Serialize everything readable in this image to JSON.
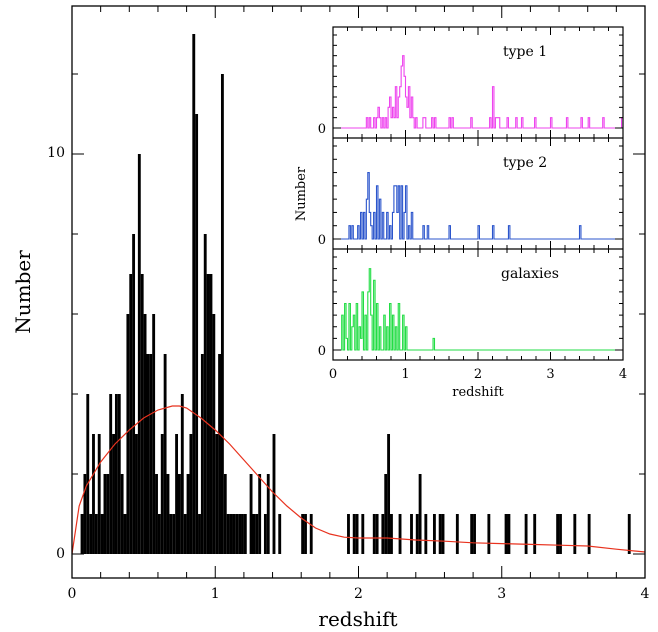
{
  "chart_data": {
    "type": "bar",
    "xlabel": "redshift",
    "ylabel": "Number",
    "xlim": [
      0,
      4
    ],
    "ylim": [
      -0.6,
      13.7
    ],
    "x_ticks": [
      "0",
      "1",
      "2",
      "3",
      "4"
    ],
    "y_ticks": [
      "0",
      "10"
    ],
    "bin_width": 0.02,
    "bar_color": "#000000",
    "curve_color": "#e8321e",
    "histogram": {
      "bin_centers": [
        0.07,
        0.09,
        0.11,
        0.13,
        0.15,
        0.17,
        0.19,
        0.21,
        0.23,
        0.25,
        0.27,
        0.29,
        0.31,
        0.33,
        0.35,
        0.37,
        0.39,
        0.41,
        0.43,
        0.45,
        0.47,
        0.49,
        0.51,
        0.53,
        0.55,
        0.57,
        0.59,
        0.61,
        0.63,
        0.65,
        0.67,
        0.69,
        0.71,
        0.73,
        0.75,
        0.77,
        0.79,
        0.81,
        0.83,
        0.85,
        0.87,
        0.89,
        0.91,
        0.93,
        0.95,
        0.97,
        0.99,
        1.01,
        1.03,
        1.05,
        1.07,
        1.09,
        1.11,
        1.13,
        1.15,
        1.17,
        1.19,
        1.21,
        1.25,
        1.27,
        1.29,
        1.31,
        1.35,
        1.37,
        1.41,
        1.45,
        1.61,
        1.63,
        1.67,
        1.93,
        1.97,
        1.99,
        2.03,
        2.11,
        2.13,
        2.17,
        2.19,
        2.21,
        2.23,
        2.29,
        2.37,
        2.41,
        2.43,
        2.47,
        2.53,
        2.57,
        2.59,
        2.69,
        2.79,
        2.81,
        2.91,
        3.03,
        3.05,
        3.17,
        3.23,
        3.39,
        3.41,
        3.51,
        3.61,
        3.89
      ],
      "counts": [
        1,
        2,
        4,
        1,
        3,
        1,
        3,
        1,
        2,
        2,
        4,
        3,
        4,
        4,
        2,
        1,
        6,
        7,
        8,
        3,
        10,
        7,
        6,
        5,
        5,
        6,
        2,
        1,
        3,
        5,
        2,
        1,
        1,
        3,
        2,
        4,
        1,
        2,
        3,
        13,
        11,
        1,
        5,
        8,
        7,
        7,
        6,
        3,
        5,
        12,
        2,
        1,
        1,
        1,
        1,
        1,
        1,
        1,
        2,
        1,
        1,
        2,
        1,
        2,
        3,
        1,
        1,
        1,
        1,
        1,
        1,
        1,
        1,
        1,
        1,
        1,
        2,
        3,
        1,
        1,
        1,
        1,
        2,
        1,
        1,
        1,
        1,
        1,
        1,
        1,
        1,
        1,
        1,
        1,
        1,
        1,
        1,
        1,
        1,
        1
      ]
    },
    "fit_curve": {
      "x": [
        0.0,
        0.05,
        0.1,
        0.15,
        0.2,
        0.3,
        0.4,
        0.5,
        0.6,
        0.7,
        0.75,
        0.8,
        0.9,
        1.0,
        1.1,
        1.2,
        1.3,
        1.4,
        1.5,
        1.6,
        1.7,
        1.8,
        1.9,
        2.0,
        2.2,
        2.4,
        2.6,
        2.8,
        3.0,
        3.2,
        3.4,
        3.6,
        3.8,
        4.0
      ],
      "y": [
        0.0,
        1.2,
        1.7,
        2.0,
        2.3,
        2.75,
        3.1,
        3.4,
        3.6,
        3.7,
        3.7,
        3.65,
        3.4,
        3.1,
        2.75,
        2.35,
        1.95,
        1.55,
        1.2,
        0.9,
        0.65,
        0.5,
        0.42,
        0.4,
        0.4,
        0.35,
        0.32,
        0.28,
        0.26,
        0.24,
        0.22,
        0.2,
        0.12,
        0.05
      ]
    },
    "inset": {
      "xlabel": "redshift",
      "ylabel": "Number",
      "xlim": [
        0,
        4
      ],
      "x_ticks": [
        "0",
        "1",
        "2",
        "3",
        "4"
      ],
      "panels": [
        {
          "name": "type 1",
          "color": "#ee44ee",
          "zero_label": "0",
          "bin_centers": [
            0.47,
            0.51,
            0.57,
            0.61,
            0.63,
            0.65,
            0.69,
            0.73,
            0.77,
            0.79,
            0.81,
            0.83,
            0.85,
            0.87,
            0.89,
            0.91,
            0.93,
            0.95,
            0.97,
            0.99,
            1.01,
            1.03,
            1.05,
            1.07,
            1.09,
            1.11,
            1.15,
            1.25,
            1.27,
            1.37,
            1.41,
            1.61,
            1.65,
            1.91,
            2.17,
            2.21,
            2.25,
            2.27,
            2.29,
            2.41,
            2.53,
            2.61,
            2.79,
            3.01,
            3.23,
            3.43,
            3.53,
            3.73,
            3.99
          ],
          "counts": [
            1,
            1,
            1,
            1,
            2,
            1,
            1,
            1,
            2,
            3,
            1,
            2,
            1,
            4,
            1,
            3,
            4,
            6,
            7,
            5,
            3,
            2,
            4,
            1,
            3,
            1,
            1,
            1,
            1,
            1,
            1,
            1,
            1,
            1,
            1,
            4,
            1,
            1,
            1,
            1,
            1,
            1,
            1,
            1,
            1,
            1,
            1,
            1,
            1
          ],
          "ymax": 9
        },
        {
          "name": "type 2",
          "color": "#2b55cc",
          "zero_label": "0",
          "bin_centers": [
            0.23,
            0.27,
            0.35,
            0.39,
            0.43,
            0.47,
            0.49,
            0.51,
            0.53,
            0.57,
            0.61,
            0.65,
            0.69,
            0.75,
            0.79,
            0.83,
            0.85,
            0.87,
            0.89,
            0.91,
            0.95,
            0.99,
            1.01,
            1.05,
            1.09,
            1.25,
            1.31,
            1.61,
            2.01,
            2.21,
            2.43,
            3.41
          ],
          "counts": [
            1,
            1,
            1,
            2,
            2,
            3,
            5,
            2,
            1,
            2,
            4,
            3,
            2,
            2,
            1,
            2,
            4,
            4,
            2,
            4,
            4,
            2,
            4,
            1,
            2,
            1,
            1,
            1,
            1,
            1,
            1,
            1
          ],
          "ymax": 7
        },
        {
          "name": "galaxies",
          "color": "#22dd44",
          "zero_label": "0",
          "bin_centers": [
            0.13,
            0.17,
            0.19,
            0.23,
            0.27,
            0.29,
            0.33,
            0.37,
            0.39,
            0.41,
            0.45,
            0.49,
            0.51,
            0.53,
            0.57,
            0.61,
            0.65,
            0.71,
            0.75,
            0.79,
            0.83,
            0.87,
            0.91,
            0.97,
            1.01,
            1.39
          ],
          "counts": [
            3,
            4,
            1,
            4,
            2,
            3,
            4,
            2,
            1,
            5,
            3,
            5,
            7,
            3,
            6,
            4,
            2,
            3,
            2,
            4,
            3,
            2,
            4,
            3,
            2,
            1
          ],
          "ymax": 8
        }
      ]
    }
  }
}
